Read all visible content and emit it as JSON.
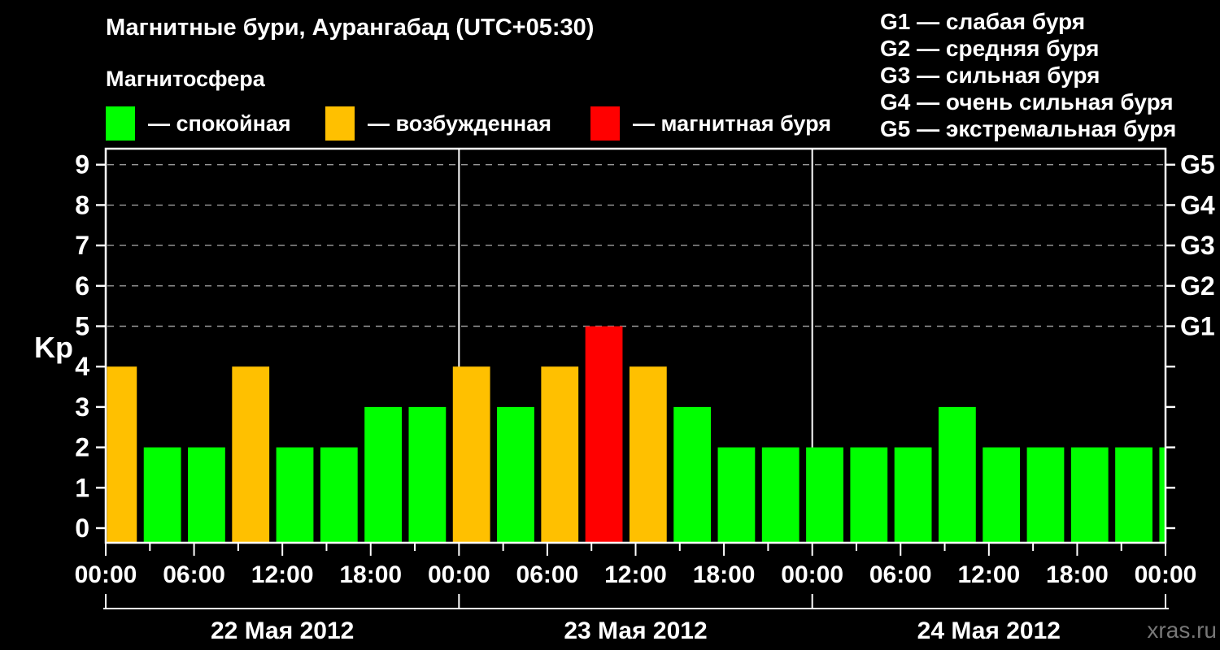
{
  "page": {
    "background": "#000000",
    "watermark": "xras.ru"
  },
  "title": "Магнитные бури, Аурангабад (UTC+05:30)",
  "subtitle": "Магнитосфера",
  "legend": {
    "items": [
      {
        "state": "quiet",
        "label": "— спокойная",
        "color": "#00FF00"
      },
      {
        "state": "unsettled",
        "label": "— возбужденная",
        "color": "#FFC000"
      },
      {
        "state": "storm",
        "label": "— магнитная буря",
        "color": "#FF0000"
      }
    ]
  },
  "storm_scale_legend": [
    "G1 — слабая буря",
    "G2 — средняя буря",
    "G3 — сильная буря",
    "G4 — очень сильная буря",
    "G5 — экстремальная буря"
  ],
  "chart_data": {
    "type": "bar",
    "title": "Магнитные бури, Аурангабад (UTC+05:30)",
    "ylabel": "Kp",
    "ylim": [
      0,
      9
    ],
    "x_total_hours": 72,
    "legend_position": "top",
    "grid": "dashed horizontal lines at Kp 5-9 only",
    "axis": {
      "color": "#FFFFFF",
      "grid_color": "#999999"
    },
    "colors": {
      "quiet": "#00FF00",
      "unsettled": "#FFC000",
      "storm": "#FF0000"
    },
    "y_ticks": [
      0,
      1,
      2,
      3,
      4,
      5,
      6,
      7,
      8,
      9
    ],
    "grid_kp_levels": [
      5,
      6,
      7,
      8,
      9
    ],
    "right_axis_labels": [
      {
        "label": "G1",
        "kp": 5
      },
      {
        "label": "G2",
        "kp": 6
      },
      {
        "label": "G3",
        "kp": 7
      },
      {
        "label": "G4",
        "kp": 8
      },
      {
        "label": "G5",
        "kp": 9
      }
    ],
    "x_minor_tick_step_hours": 3,
    "x_major_tick_step_hours": 6,
    "x_tick_labels": [
      {
        "hour": 0,
        "label": "00:00"
      },
      {
        "hour": 6,
        "label": "06:00"
      },
      {
        "hour": 12,
        "label": "12:00"
      },
      {
        "hour": 18,
        "label": "18:00"
      },
      {
        "hour": 24,
        "label": "00:00"
      },
      {
        "hour": 30,
        "label": "06:00"
      },
      {
        "hour": 36,
        "label": "12:00"
      },
      {
        "hour": 42,
        "label": "18:00"
      },
      {
        "hour": 48,
        "label": "00:00"
      },
      {
        "hour": 54,
        "label": "06:00"
      },
      {
        "hour": 60,
        "label": "12:00"
      },
      {
        "hour": 66,
        "label": "18:00"
      },
      {
        "hour": 72,
        "label": "00:00"
      }
    ],
    "day_separators_hours": [
      24,
      48
    ],
    "days": [
      {
        "label": "22 Мая 2012",
        "start_hour": 0,
        "end_hour": 24
      },
      {
        "label": "23 Мая 2012",
        "start_hour": 24,
        "end_hour": 48
      },
      {
        "label": "24 Мая 2012",
        "start_hour": 48,
        "end_hour": 72
      }
    ],
    "bars": [
      {
        "start_hour": 0,
        "end_hour": 2.5,
        "kp": 4,
        "state": "unsettled"
      },
      {
        "start_hour": 2.5,
        "end_hour": 5.5,
        "kp": 2,
        "state": "quiet"
      },
      {
        "start_hour": 5.5,
        "end_hour": 8.5,
        "kp": 2,
        "state": "quiet"
      },
      {
        "start_hour": 8.5,
        "end_hour": 11.5,
        "kp": 4,
        "state": "unsettled"
      },
      {
        "start_hour": 11.5,
        "end_hour": 14.5,
        "kp": 2,
        "state": "quiet"
      },
      {
        "start_hour": 14.5,
        "end_hour": 17.5,
        "kp": 2,
        "state": "quiet"
      },
      {
        "start_hour": 17.5,
        "end_hour": 20.5,
        "kp": 3,
        "state": "quiet"
      },
      {
        "start_hour": 20.5,
        "end_hour": 23.5,
        "kp": 3,
        "state": "quiet"
      },
      {
        "start_hour": 23.5,
        "end_hour": 26.5,
        "kp": 4,
        "state": "unsettled"
      },
      {
        "start_hour": 26.5,
        "end_hour": 29.5,
        "kp": 3,
        "state": "quiet"
      },
      {
        "start_hour": 29.5,
        "end_hour": 32.5,
        "kp": 4,
        "state": "unsettled"
      },
      {
        "start_hour": 32.5,
        "end_hour": 35.5,
        "kp": 5,
        "state": "storm"
      },
      {
        "start_hour": 35.5,
        "end_hour": 38.5,
        "kp": 4,
        "state": "unsettled"
      },
      {
        "start_hour": 38.5,
        "end_hour": 41.5,
        "kp": 3,
        "state": "quiet"
      },
      {
        "start_hour": 41.5,
        "end_hour": 44.5,
        "kp": 2,
        "state": "quiet"
      },
      {
        "start_hour": 44.5,
        "end_hour": 47.5,
        "kp": 2,
        "state": "quiet"
      },
      {
        "start_hour": 47.5,
        "end_hour": 50.5,
        "kp": 2,
        "state": "quiet"
      },
      {
        "start_hour": 50.5,
        "end_hour": 53.5,
        "kp": 2,
        "state": "quiet"
      },
      {
        "start_hour": 53.5,
        "end_hour": 56.5,
        "kp": 2,
        "state": "quiet"
      },
      {
        "start_hour": 56.5,
        "end_hour": 59.5,
        "kp": 3,
        "state": "quiet"
      },
      {
        "start_hour": 59.5,
        "end_hour": 62.5,
        "kp": 2,
        "state": "quiet"
      },
      {
        "start_hour": 62.5,
        "end_hour": 65.5,
        "kp": 2,
        "state": "quiet"
      },
      {
        "start_hour": 65.5,
        "end_hour": 68.5,
        "kp": 2,
        "state": "quiet"
      },
      {
        "start_hour": 68.5,
        "end_hour": 71.5,
        "kp": 2,
        "state": "quiet"
      },
      {
        "start_hour": 71.5,
        "end_hour": 72,
        "kp": 2,
        "state": "quiet"
      }
    ]
  }
}
